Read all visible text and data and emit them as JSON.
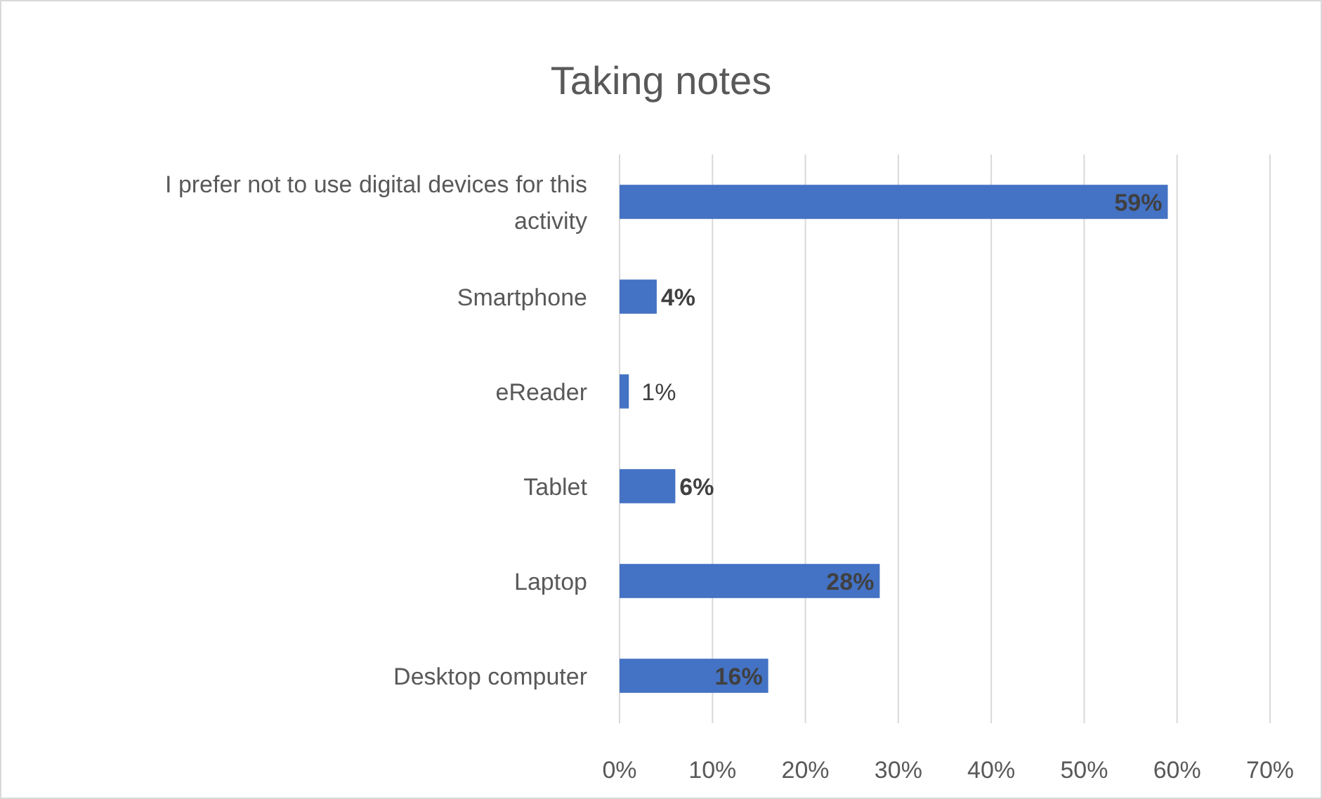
{
  "chart_data": {
    "type": "bar",
    "orientation": "horizontal",
    "title": "Taking notes",
    "categories": [
      "I prefer not to use digital devices for this activity",
      "Smartphone",
      "eReader",
      "Tablet",
      "Laptop",
      "Desktop computer"
    ],
    "values": [
      59,
      4,
      1,
      6,
      28,
      16
    ],
    "value_labels": [
      "59%",
      "4%",
      "1%",
      "6%",
      "28%",
      "16%"
    ],
    "color": "#4472c4",
    "xlim": [
      0,
      70
    ],
    "xticks": [
      {
        "value": 0,
        "label": "0%"
      },
      {
        "value": 10,
        "label": "10%"
      },
      {
        "value": 20,
        "label": "20%"
      },
      {
        "value": 30,
        "label": "30%"
      },
      {
        "value": 40,
        "label": "40%"
      },
      {
        "value": 50,
        "label": "50%"
      },
      {
        "value": 60,
        "label": "60%"
      },
      {
        "value": 70,
        "label": "70%"
      }
    ],
    "grid": "x"
  }
}
